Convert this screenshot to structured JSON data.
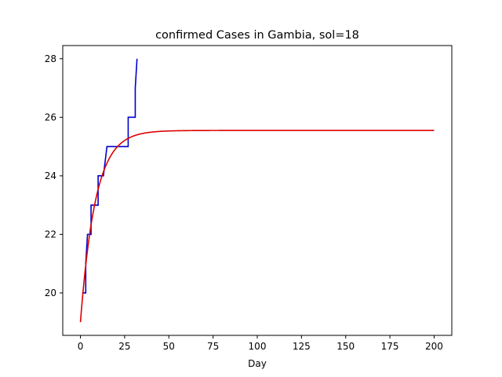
{
  "chart_data": {
    "type": "line",
    "title": "confirmed Cases in Gambia, sol=18",
    "xlabel": "Day",
    "ylabel": "",
    "xlim": [
      -10,
      210
    ],
    "ylim": [
      18.55,
      28.45
    ],
    "xticks": [
      0,
      25,
      50,
      75,
      100,
      125,
      150,
      175,
      200
    ],
    "yticks": [
      20,
      22,
      24,
      26,
      28
    ],
    "grid": false,
    "legend": "none",
    "series": [
      {
        "color": "#0000cc",
        "style": "step",
        "x": [
          1,
          3,
          3,
          4,
          4,
          6,
          6,
          10,
          10,
          13,
          13,
          15,
          15,
          27,
          27,
          31,
          31,
          32
        ],
        "y": [
          20,
          20,
          21,
          22,
          22,
          22,
          23,
          23,
          24,
          24,
          24,
          25,
          25,
          25,
          26,
          26,
          27,
          28
        ]
      },
      {
        "color": "#dd0000",
        "style": "line",
        "model": {
          "start": 19.0,
          "plateau": 25.55,
          "rate": 0.118,
          "x_start": 0,
          "x_end": 200
        }
      }
    ]
  }
}
